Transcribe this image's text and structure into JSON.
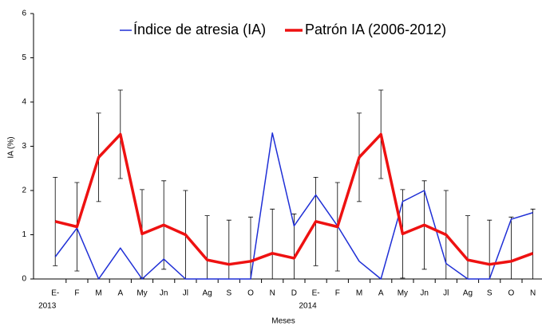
{
  "chart_data": {
    "type": "line",
    "x_label": "Meses",
    "y_label": "IA (%)",
    "categories": [
      "E-",
      "F",
      "M",
      "A",
      "My",
      "Jn",
      "Jl",
      "Ag",
      "S",
      "O",
      "N",
      "D",
      "E-",
      "F",
      "M",
      "A",
      "My",
      "Jn",
      "Jl",
      "Ag",
      "S",
      "O",
      "N"
    ],
    "category_sublabels": [
      "2013",
      null,
      null,
      null,
      null,
      null,
      null,
      null,
      null,
      null,
      null,
      null,
      "2014",
      null,
      null,
      null,
      null,
      null,
      null,
      null,
      null,
      null,
      null
    ],
    "series": [
      {
        "name": "Índice de atresia (IA)",
        "color": "#1f2fd6",
        "width": 1.5,
        "values": [
          0.5,
          1.15,
          0,
          0.7,
          0,
          0.45,
          0,
          0,
          0,
          0,
          3.3,
          1.2,
          1.9,
          1.2,
          0.4,
          0,
          1.75,
          2.0,
          0.35,
          0,
          0,
          1.35,
          1.5
        ]
      },
      {
        "name": "Patrón IA (2006-2012)",
        "color": "#ee1111",
        "width": 3.5,
        "values": [
          1.3,
          1.18,
          2.75,
          3.27,
          1.02,
          1.22,
          1.0,
          0.43,
          0.33,
          0.4,
          0.58,
          0.47,
          1.3,
          1.18,
          2.75,
          3.27,
          1.02,
          1.22,
          1.0,
          0.43,
          0.33,
          0.4,
          0.58
        ],
        "errors": [
          1,
          1,
          1,
          1,
          1,
          1,
          1,
          1,
          1,
          1,
          1,
          1,
          1,
          1,
          1,
          1,
          1,
          1,
          1,
          1,
          1,
          1,
          1
        ]
      }
    ],
    "ylim": [
      0,
      6
    ],
    "yticks": [
      0,
      1,
      2,
      3,
      4,
      5,
      6
    ],
    "grid": false,
    "legend": "top"
  }
}
